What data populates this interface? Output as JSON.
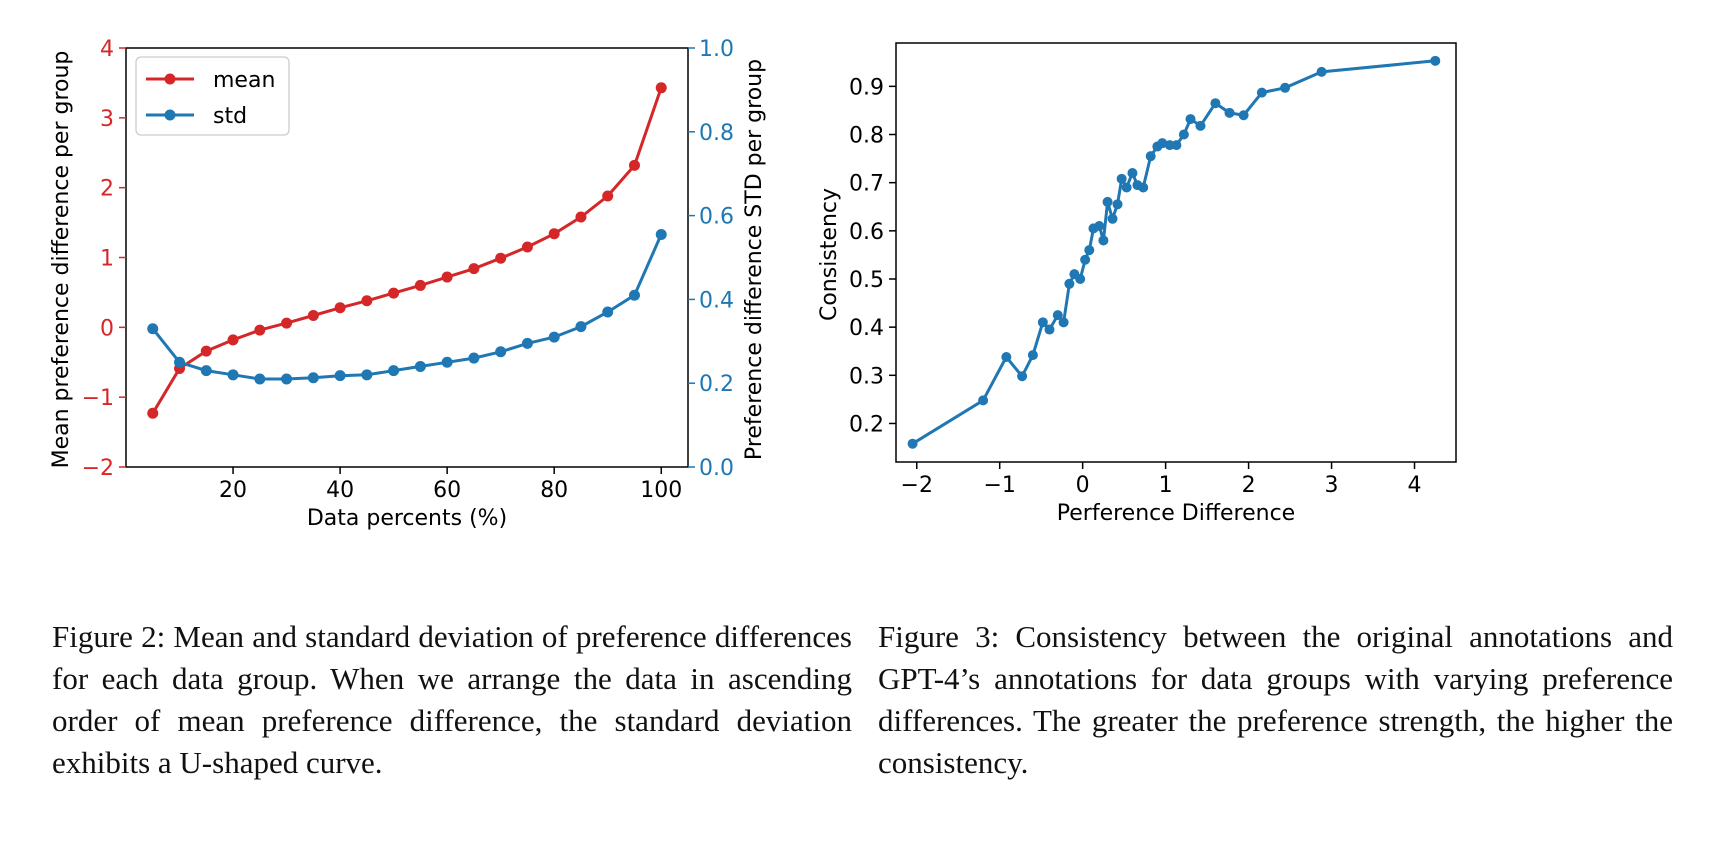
{
  "figures": [
    {
      "caption": "Figure 2: Mean and standard deviation of preference differences for each data group. When we arrange the data in ascending order of mean preference difference, the standard deviation exhibits a U-shaped curve."
    },
    {
      "caption": "Figure 3: Consistency between the original annotations and GPT-4’s annotations for data groups with varying preference differences. The greater the preference strength, the higher the consistency."
    }
  ],
  "chart_data": [
    {
      "type": "line",
      "title": "",
      "xlabel": "Data percents (%)",
      "ylabel": "Mean preference difference per group",
      "y2label": "Preference difference STD per group",
      "xlim": [
        0,
        105
      ],
      "ylim": [
        -2,
        4
      ],
      "y2lim": [
        0.0,
        1.0
      ],
      "xticks": [
        20,
        40,
        60,
        80,
        100
      ],
      "yticks": [
        -2,
        -1,
        0,
        1,
        2,
        3,
        4
      ],
      "y2ticks": [
        0.0,
        0.2,
        0.4,
        0.6,
        0.8,
        1.0
      ],
      "xtick_labels": [
        "20",
        "40",
        "60",
        "80",
        "100"
      ],
      "ytick_labels": [
        "−2",
        "−1",
        "0",
        "1",
        "2",
        "3",
        "4"
      ],
      "y2tick_labels": [
        "0.0",
        "0.2",
        "0.4",
        "0.6",
        "0.8",
        "1.0"
      ],
      "x": [
        5,
        10,
        15,
        20,
        25,
        30,
        35,
        40,
        45,
        50,
        55,
        60,
        65,
        70,
        75,
        80,
        85,
        90,
        95,
        100
      ],
      "series": [
        {
          "name": "mean",
          "axis": "left",
          "color": "#d62728",
          "values": [
            -1.23,
            -0.59,
            -0.34,
            -0.18,
            -0.04,
            0.06,
            0.17,
            0.28,
            0.38,
            0.49,
            0.6,
            0.72,
            0.84,
            0.99,
            1.15,
            1.34,
            1.58,
            1.88,
            2.32,
            3.43
          ]
        },
        {
          "name": "std",
          "axis": "right",
          "color": "#1f77b4",
          "values": [
            0.33,
            0.25,
            0.23,
            0.22,
            0.21,
            0.21,
            0.213,
            0.218,
            0.22,
            0.23,
            0.24,
            0.25,
            0.26,
            0.275,
            0.295,
            0.31,
            0.335,
            0.37,
            0.41,
            0.555
          ]
        }
      ],
      "legend_placement": "top-left",
      "grid": false
    },
    {
      "type": "line",
      "title": "",
      "xlabel": "Perference Difference",
      "ylabel": "Consistency",
      "xlim": [
        -2.25,
        4.5
      ],
      "ylim": [
        0.12,
        0.99
      ],
      "xticks": [
        -2,
        -1,
        0,
        1,
        2,
        3,
        4
      ],
      "yticks": [
        0.2,
        0.3,
        0.4,
        0.5,
        0.6,
        0.7,
        0.8,
        0.9
      ],
      "xtick_labels": [
        "−2",
        "−1",
        "0",
        "1",
        "2",
        "3",
        "4"
      ],
      "ytick_labels": [
        "0.2",
        "0.3",
        "0.4",
        "0.5",
        "0.6",
        "0.7",
        "0.8",
        "0.9"
      ],
      "series": [
        {
          "color": "#1f77b4",
          "x": [
            -2.05,
            -1.2,
            -0.92,
            -0.73,
            -0.6,
            -0.48,
            -0.4,
            -0.3,
            -0.23,
            -0.16,
            -0.1,
            -0.03,
            0.03,
            0.08,
            0.13,
            0.2,
            0.25,
            0.3,
            0.36,
            0.42,
            0.47,
            0.53,
            0.6,
            0.66,
            0.73,
            0.82,
            0.9,
            0.96,
            1.05,
            1.13,
            1.22,
            1.3,
            1.42,
            1.6,
            1.77,
            1.94,
            2.16,
            2.44,
            2.88,
            4.25
          ],
          "y": [
            0.158,
            0.248,
            0.338,
            0.298,
            0.342,
            0.41,
            0.395,
            0.425,
            0.41,
            0.49,
            0.51,
            0.5,
            0.54,
            0.56,
            0.605,
            0.61,
            0.58,
            0.66,
            0.625,
            0.655,
            0.708,
            0.69,
            0.72,
            0.695,
            0.69,
            0.755,
            0.775,
            0.782,
            0.778,
            0.778,
            0.8,
            0.832,
            0.818,
            0.865,
            0.845,
            0.84,
            0.887,
            0.897,
            0.93,
            0.953
          ]
        }
      ],
      "grid": false
    }
  ]
}
